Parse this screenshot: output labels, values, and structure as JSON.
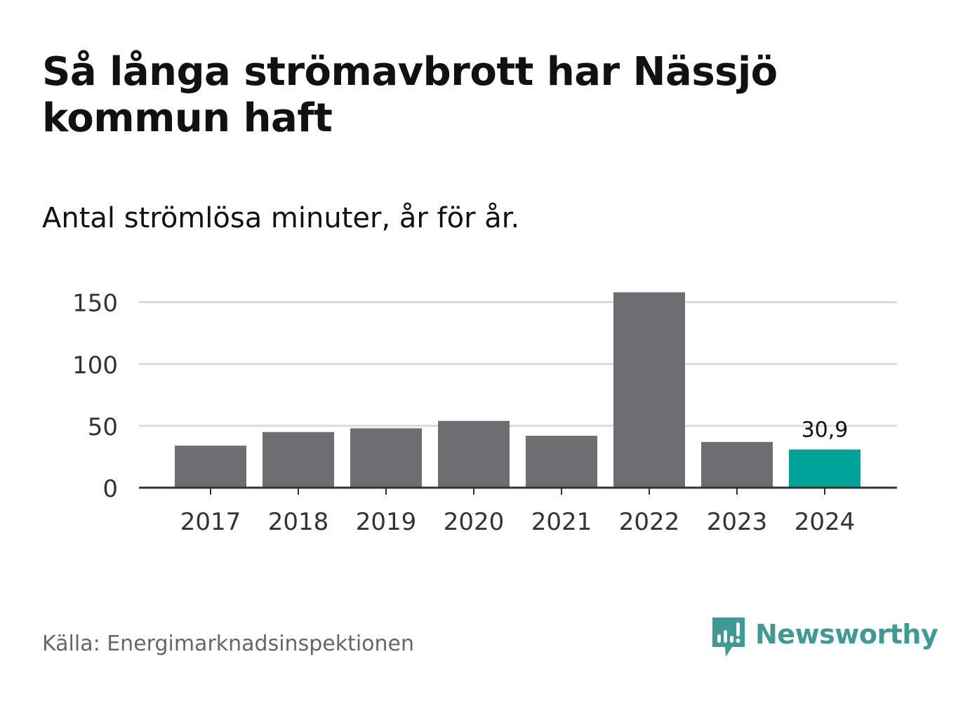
{
  "header": {
    "title": "Så långa strömavbrott har Nässjö kommun haft",
    "subtitle": "Antal strömlösa minuter, år för år."
  },
  "footer": {
    "source": "Källa: Energimarknadsinspektionen",
    "brand": "Newsworthy"
  },
  "colors": {
    "bar": "#6e6d72",
    "highlight": "#00a398",
    "grid": "#d9d9d9",
    "axis": "#333333",
    "brand": "#3f9a91"
  },
  "chart_data": {
    "type": "bar",
    "title": "Så långa strömavbrott har Nässjö kommun haft",
    "subtitle": "Antal strömlösa minuter, år för år.",
    "xlabel": "",
    "ylabel": "",
    "categories": [
      "2017",
      "2018",
      "2019",
      "2020",
      "2021",
      "2022",
      "2023",
      "2024"
    ],
    "values": [
      34,
      45,
      48,
      54,
      42,
      158,
      37,
      30.9
    ],
    "ylim": [
      0,
      160
    ],
    "yticks": [
      0,
      50,
      100,
      150
    ],
    "grid": true,
    "highlight_index": 7,
    "data_label": "30,9"
  }
}
